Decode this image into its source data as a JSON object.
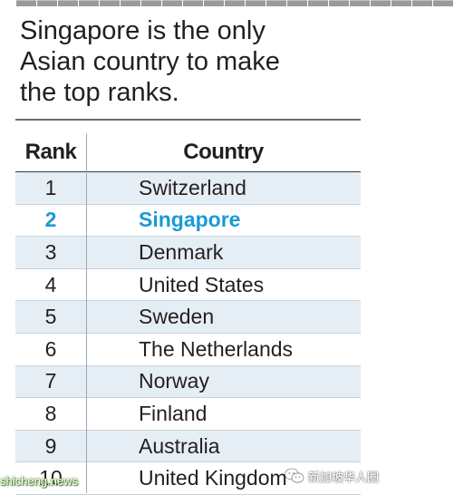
{
  "intro": {
    "lines": [
      "Singapore is the only",
      "Asian country to make",
      "the top ranks."
    ]
  },
  "table": {
    "headers": {
      "rank": "Rank",
      "country": "Country"
    },
    "highlight_color": "#1a9ad6",
    "shade_color": "#e6eef5",
    "rows": [
      {
        "rank": "1",
        "country": "Switzerland"
      },
      {
        "rank": "2",
        "country": "Singapore"
      },
      {
        "rank": "3",
        "country": "Denmark"
      },
      {
        "rank": "4",
        "country": "United States"
      },
      {
        "rank": "5",
        "country": "Sweden"
      },
      {
        "rank": "6",
        "country": "The Netherlands"
      },
      {
        "rank": "7",
        "country": "Norway"
      },
      {
        "rank": "8",
        "country": "Finland"
      },
      {
        "rank": "9",
        "country": "Australia"
      },
      {
        "rank": "10",
        "country": "United Kingdom"
      }
    ]
  },
  "watermarks": {
    "left": "shicheng.news",
    "right_icon": "wechat-icon",
    "right": "新加坡华人圈"
  }
}
